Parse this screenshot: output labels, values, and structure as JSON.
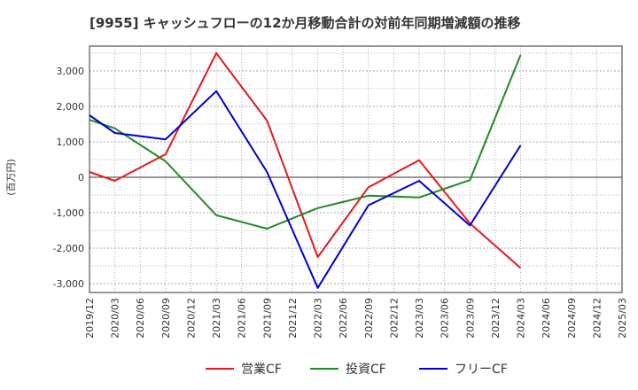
{
  "chart_data": {
    "type": "line",
    "title": "[9955]  キャッシュフローの12か月移動合計の対前年同期増減額の推移",
    "xlabel": "",
    "ylabel": "(百万円)",
    "ylim": [
      -3250,
      3700
    ],
    "yticks": [
      -3000,
      -2000,
      -1000,
      0,
      1000,
      2000,
      3000
    ],
    "ytick_labels": [
      "-3,000",
      "-2,000",
      "-1,000",
      "0",
      "1,000",
      "2,000",
      "3,000"
    ],
    "categories": [
      "2019/12",
      "2020/03",
      "2020/06",
      "2020/09",
      "2020/12",
      "2021/03",
      "2021/06",
      "2021/09",
      "2021/12",
      "2022/03",
      "2022/06",
      "2022/09",
      "2022/12",
      "2023/03",
      "2023/06",
      "2023/09",
      "2023/12",
      "2024/03",
      "2024/06",
      "2024/09",
      "2024/12",
      "2025/03"
    ],
    "grid": true,
    "legend_position": "bottom",
    "series": [
      {
        "name": "営業CF",
        "color": "#e31a1c",
        "values": [
          150,
          -100,
          null,
          650,
          null,
          3500,
          null,
          1600,
          null,
          -2250,
          null,
          -280,
          null,
          480,
          null,
          -1300,
          null,
          -2560,
          null,
          null,
          null,
          null
        ]
      },
      {
        "name": "投資CF",
        "color": "#228b22",
        "values": [
          1620,
          1380,
          null,
          450,
          null,
          -1070,
          null,
          -1450,
          null,
          -870,
          null,
          -520,
          null,
          -570,
          null,
          -80,
          null,
          3450,
          null,
          null,
          null,
          null
        ]
      },
      {
        "name": "フリーCF",
        "color": "#0000cd",
        "values": [
          1750,
          1250,
          null,
          1070,
          null,
          2430,
          null,
          150,
          null,
          -3120,
          null,
          -790,
          null,
          -100,
          null,
          -1360,
          null,
          900,
          null,
          null,
          null,
          null
        ]
      }
    ]
  }
}
